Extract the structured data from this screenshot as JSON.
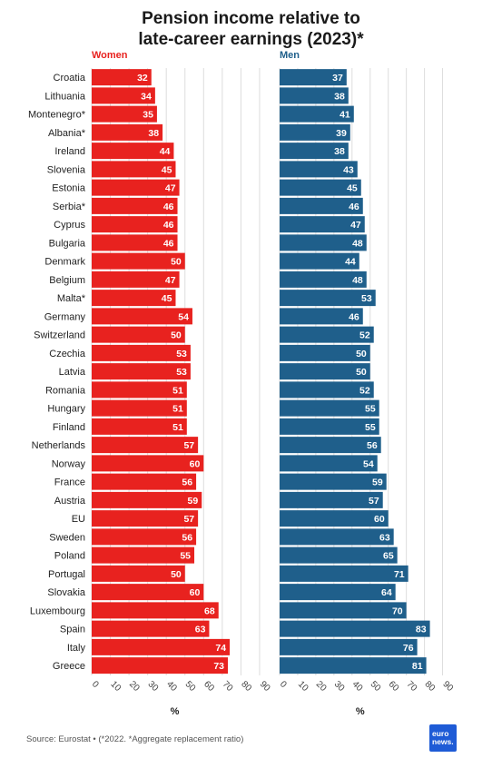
{
  "title_line1": "Pension income relative to",
  "title_line2": "late-career earnings (2023)*",
  "source": "Source: Eurostat • (*2022. *Aggregate replacement ratio)",
  "logo_line1": "euro",
  "logo_line2": "news.",
  "colors": {
    "women": "#e8221f",
    "men": "#1f5f8b",
    "grid": "#dddddd"
  },
  "chart_data": [
    {
      "type": "bar",
      "orientation": "horizontal",
      "title": "Women",
      "xlabel": "%",
      "xlim": [
        0,
        90
      ],
      "xticks": [
        0,
        10,
        20,
        30,
        40,
        50,
        60,
        70,
        80,
        90
      ],
      "grid": true,
      "categories": [
        "Croatia",
        "Lithuania",
        "Montenegro*",
        "Albania*",
        "Ireland",
        "Slovenia",
        "Estonia",
        "Serbia*",
        "Cyprus",
        "Bulgaria",
        "Denmark",
        "Belgium",
        "Malta*",
        "Germany",
        "Switzerland",
        "Czechia",
        "Latvia",
        "Romania",
        "Hungary",
        "Finland",
        "Netherlands",
        "Norway",
        "France",
        "Austria",
        "EU",
        "Sweden",
        "Poland",
        "Portugal",
        "Slovakia",
        "Luxembourg",
        "Spain",
        "Italy",
        "Greece"
      ],
      "values": [
        32,
        34,
        35,
        38,
        44,
        45,
        47,
        46,
        46,
        46,
        50,
        47,
        45,
        54,
        50,
        53,
        53,
        51,
        51,
        51,
        57,
        60,
        56,
        59,
        57,
        56,
        55,
        50,
        60,
        68,
        63,
        74,
        73
      ]
    },
    {
      "type": "bar",
      "orientation": "horizontal",
      "title": "Men",
      "xlabel": "%",
      "xlim": [
        0,
        90
      ],
      "xticks": [
        0,
        10,
        20,
        30,
        40,
        50,
        60,
        70,
        80,
        90
      ],
      "grid": true,
      "categories": [
        "Croatia",
        "Lithuania",
        "Montenegro*",
        "Albania*",
        "Ireland",
        "Slovenia",
        "Estonia",
        "Serbia*",
        "Cyprus",
        "Bulgaria",
        "Denmark",
        "Belgium",
        "Malta*",
        "Germany",
        "Switzerland",
        "Czechia",
        "Latvia",
        "Romania",
        "Hungary",
        "Finland",
        "Netherlands",
        "Norway",
        "France",
        "Austria",
        "EU",
        "Sweden",
        "Poland",
        "Portugal",
        "Slovakia",
        "Luxembourg",
        "Spain",
        "Italy",
        "Greece"
      ],
      "values": [
        37,
        38,
        41,
        39,
        38,
        43,
        45,
        46,
        47,
        48,
        44,
        48,
        53,
        46,
        52,
        50,
        50,
        52,
        55,
        55,
        56,
        54,
        59,
        57,
        60,
        63,
        65,
        71,
        64,
        70,
        83,
        76,
        81
      ]
    }
  ]
}
